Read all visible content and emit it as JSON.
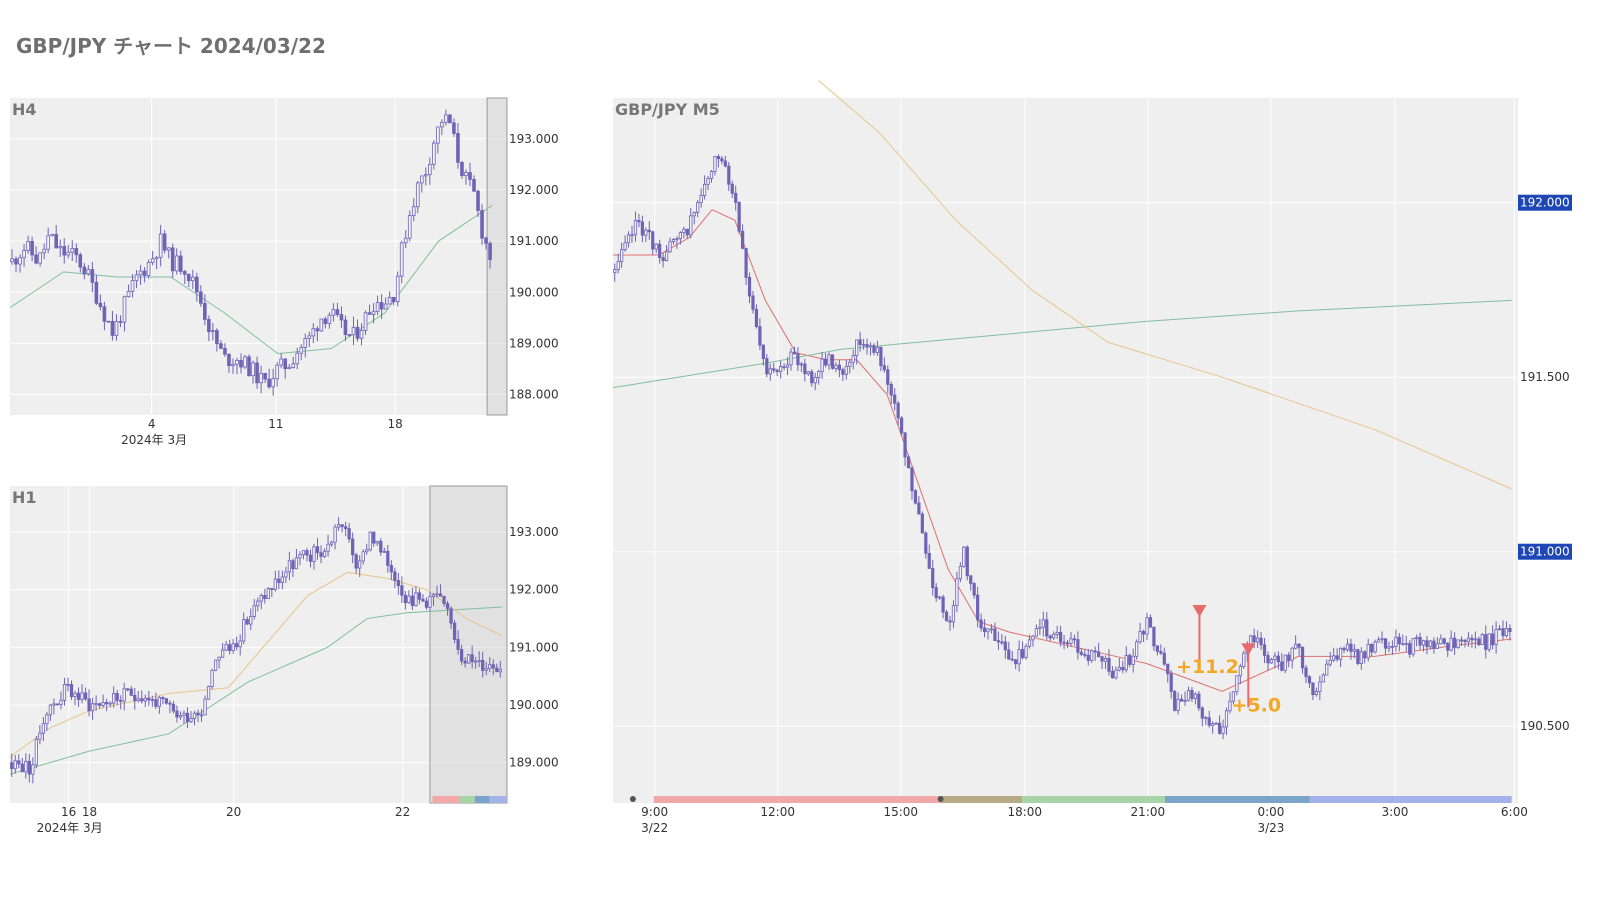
{
  "page": {
    "title": "GBP/JPY チャート 2024/03/22"
  },
  "colors": {
    "plot_bg": "#efefef",
    "candle": "#6f63b5",
    "ma_red": "#e07070",
    "ma_green": "#7fbf9c",
    "ma_orange": "#e8c48a",
    "price_badge": "#1f46b5",
    "annotation": "#f5a623",
    "signal": "#e86a6a"
  },
  "chart_data": [
    {
      "id": "h4",
      "type": "candlestick",
      "title": "H4",
      "ylim": [
        187.6,
        193.8
      ],
      "yticks": [
        188,
        189,
        190,
        191,
        192,
        193
      ],
      "ytick_labels": [
        "188.000",
        "189.000",
        "190.000",
        "191.000",
        "192.000",
        "193.000"
      ],
      "xticks": [
        {
          "pos": 0.285,
          "label": "4"
        },
        {
          "pos": 0.535,
          "label": "11"
        },
        {
          "pos": 0.775,
          "label": "18"
        }
      ],
      "xsublabel": {
        "pos": 0.29,
        "label": "2024年 3月"
      },
      "highlight": [
        0.96,
        1.0
      ],
      "n": 120,
      "anchors": [
        [
          0,
          190.6
        ],
        [
          5,
          190.9
        ],
        [
          10,
          190.6
        ],
        [
          14,
          191.1
        ],
        [
          18,
          190.8
        ],
        [
          24,
          190.7
        ],
        [
          28,
          190.4
        ],
        [
          33,
          189.8
        ],
        [
          38,
          189.2
        ],
        [
          42,
          189.7
        ],
        [
          47,
          190.3
        ],
        [
          52,
          190.6
        ],
        [
          56,
          191.0
        ],
        [
          60,
          190.6
        ],
        [
          65,
          190.5
        ],
        [
          70,
          190.0
        ],
        [
          75,
          189.2
        ],
        [
          80,
          188.7
        ],
        [
          85,
          188.7
        ],
        [
          90,
          188.5
        ],
        [
          95,
          188.2
        ],
        [
          100,
          188.5
        ],
        [
          104,
          188.6
        ],
        [
          108,
          188.9
        ],
        [
          112,
          189.1
        ],
        [
          116,
          189.5
        ],
        [
          120,
          189.6
        ],
        [
          124,
          189.3
        ],
        [
          128,
          189.1
        ],
        [
          132,
          189.4
        ],
        [
          136,
          189.8
        ],
        [
          140,
          189.8
        ],
        [
          144,
          190.0
        ],
        [
          147,
          190.9
        ],
        [
          150,
          191.6
        ],
        [
          153,
          192.1
        ],
        [
          156,
          192.4
        ],
        [
          159,
          193.0
        ],
        [
          162,
          193.4
        ],
        [
          165,
          193.3
        ],
        [
          168,
          192.6
        ],
        [
          171,
          192.2
        ],
        [
          174,
          191.9
        ],
        [
          177,
          191.2
        ],
        [
          180,
          190.7
        ]
      ],
      "anchor_max": 180,
      "ma": [
        {
          "color_key": "ma_green",
          "points": [
            [
              0,
              189.7
            ],
            [
              20,
              190.4
            ],
            [
              40,
              190.3
            ],
            [
              60,
              190.3
            ],
            [
              80,
              189.6
            ],
            [
              100,
              188.8
            ],
            [
              120,
              188.9
            ],
            [
              140,
              189.6
            ],
            [
              160,
              191.0
            ],
            [
              180,
              191.7
            ]
          ]
        }
      ]
    },
    {
      "id": "h1",
      "type": "candlestick",
      "title": "H1",
      "ylim": [
        188.3,
        193.8
      ],
      "yticks": [
        189,
        190,
        191,
        192,
        193
      ],
      "ytick_labels": [
        "189.000",
        "190.000",
        "191.000",
        "192.000",
        "193.000"
      ],
      "xticks": [
        {
          "pos": 0.118,
          "label": "16"
        },
        {
          "pos": 0.16,
          "label": "18"
        },
        {
          "pos": 0.45,
          "label": "20"
        },
        {
          "pos": 0.79,
          "label": "22"
        }
      ],
      "xsublabel": {
        "pos": 0.12,
        "label": "2024年 3月"
      },
      "highlight": [
        0.845,
        1.0
      ],
      "session_bar": true,
      "n": 140,
      "anchors": [
        [
          0,
          189.0
        ],
        [
          5,
          188.9
        ],
        [
          8,
          189.8
        ],
        [
          14,
          190.3
        ],
        [
          20,
          190.0
        ],
        [
          26,
          190.1
        ],
        [
          32,
          190.2
        ],
        [
          38,
          190.0
        ],
        [
          43,
          189.8
        ],
        [
          48,
          189.9
        ],
        [
          52,
          190.9
        ],
        [
          56,
          191.0
        ],
        [
          60,
          191.5
        ],
        [
          64,
          191.9
        ],
        [
          68,
          192.2
        ],
        [
          72,
          192.5
        ],
        [
          76,
          192.6
        ],
        [
          80,
          192.7
        ],
        [
          83,
          193.2
        ],
        [
          86,
          192.8
        ],
        [
          88,
          192.3
        ],
        [
          91,
          193.0
        ],
        [
          94,
          192.6
        ],
        [
          97,
          192.3
        ],
        [
          100,
          191.9
        ],
        [
          104,
          191.8
        ],
        [
          108,
          191.9
        ],
        [
          111,
          191.5
        ],
        [
          114,
          190.9
        ],
        [
          118,
          190.7
        ],
        [
          124,
          190.7
        ]
      ],
      "anchor_max": 124,
      "ma": [
        {
          "color_key": "ma_green",
          "points": [
            [
              0,
              188.8
            ],
            [
              20,
              189.2
            ],
            [
              40,
              189.5
            ],
            [
              60,
              190.4
            ],
            [
              80,
              191.0
            ],
            [
              90,
              191.5
            ],
            [
              100,
              191.6
            ],
            [
              124,
              191.7
            ]
          ]
        },
        {
          "color_key": "ma_orange",
          "points": [
            [
              0,
              189.1
            ],
            [
              10,
              189.6
            ],
            [
              20,
              189.9
            ],
            [
              40,
              190.2
            ],
            [
              55,
              190.3
            ],
            [
              65,
              191.1
            ],
            [
              75,
              191.9
            ],
            [
              85,
              192.3
            ],
            [
              95,
              192.2
            ],
            [
              105,
              192.0
            ],
            [
              115,
              191.5
            ],
            [
              124,
              191.2
            ]
          ]
        }
      ]
    },
    {
      "id": "m5",
      "type": "candlestick",
      "title": "GBP/JPY M5",
      "ylim": [
        190.28,
        192.3
      ],
      "yticks": [
        190.5,
        191.0,
        191.5,
        192.0
      ],
      "ytick_labels": [
        "190.500",
        "191.000",
        "191.500",
        "192.000"
      ],
      "badge_ticks": [
        191.0,
        192.0
      ],
      "xticks": [
        {
          "pos": 0.046,
          "label": "9:00",
          "sub": "3/22"
        },
        {
          "pos": 0.182,
          "label": "12:00"
        },
        {
          "pos": 0.318,
          "label": "15:00"
        },
        {
          "pos": 0.455,
          "label": "18:00"
        },
        {
          "pos": 0.591,
          "label": "21:00"
        },
        {
          "pos": 0.727,
          "label": "0:00",
          "sub": "3/23"
        },
        {
          "pos": 0.864,
          "label": "3:00"
        },
        {
          "pos": 0.996,
          "label": "6:00"
        }
      ],
      "session_bar": true,
      "n": 260,
      "anchors": [
        [
          0,
          191.8
        ],
        [
          6,
          191.95
        ],
        [
          12,
          191.85
        ],
        [
          18,
          191.9
        ],
        [
          24,
          192.05
        ],
        [
          28,
          192.15
        ],
        [
          32,
          192.0
        ],
        [
          36,
          191.7
        ],
        [
          40,
          191.5
        ],
        [
          44,
          191.55
        ],
        [
          48,
          191.55
        ],
        [
          52,
          191.5
        ],
        [
          56,
          191.55
        ],
        [
          60,
          191.52
        ],
        [
          64,
          191.6
        ],
        [
          68,
          191.6
        ],
        [
          72,
          191.5
        ],
        [
          76,
          191.3
        ],
        [
          80,
          191.1
        ],
        [
          84,
          190.9
        ],
        [
          88,
          190.8
        ],
        [
          92,
          191.0
        ],
        [
          96,
          190.8
        ],
        [
          100,
          190.75
        ],
        [
          104,
          190.7
        ],
        [
          108,
          190.7
        ],
        [
          112,
          190.8
        ],
        [
          116,
          190.75
        ],
        [
          120,
          190.75
        ],
        [
          124,
          190.7
        ],
        [
          128,
          190.7
        ],
        [
          132,
          190.65
        ],
        [
          136,
          190.7
        ],
        [
          140,
          190.8
        ],
        [
          144,
          190.7
        ],
        [
          148,
          190.55
        ],
        [
          152,
          190.6
        ],
        [
          156,
          190.5
        ],
        [
          160,
          190.5
        ],
        [
          164,
          190.65
        ],
        [
          168,
          190.75
        ],
        [
          172,
          190.7
        ],
        [
          176,
          190.68
        ],
        [
          180,
          190.72
        ],
        [
          184,
          190.6
        ],
        [
          188,
          190.68
        ],
        [
          192,
          190.73
        ],
        [
          196,
          190.7
        ],
        [
          200,
          190.72
        ],
        [
          204,
          190.75
        ],
        [
          208,
          190.72
        ],
        [
          212,
          190.74
        ],
        [
          216,
          190.72
        ],
        [
          220,
          190.74
        ],
        [
          225,
          190.75
        ],
        [
          230,
          190.74
        ],
        [
          236,
          190.78
        ]
      ],
      "anchor_max": 236,
      "ma": [
        {
          "color_key": "ma_red",
          "points": [
            [
              0,
              191.85
            ],
            [
              12,
              191.85
            ],
            [
              20,
              191.9
            ],
            [
              26,
              191.98
            ],
            [
              32,
              191.95
            ],
            [
              40,
              191.72
            ],
            [
              48,
              191.57
            ],
            [
              56,
              191.55
            ],
            [
              64,
              191.55
            ],
            [
              72,
              191.45
            ],
            [
              80,
              191.2
            ],
            [
              88,
              190.95
            ],
            [
              96,
              190.8
            ],
            [
              104,
              190.77
            ],
            [
              112,
              190.75
            ],
            [
              124,
              190.72
            ],
            [
              140,
              190.68
            ],
            [
              160,
              190.6
            ],
            [
              180,
              190.7
            ],
            [
              200,
              190.7
            ],
            [
              220,
              190.73
            ],
            [
              236,
              190.75
            ]
          ]
        },
        {
          "color_key": "ma_green",
          "points": [
            [
              0,
              191.47
            ],
            [
              40,
              191.54
            ],
            [
              60,
              191.58
            ],
            [
              100,
              191.62
            ],
            [
              140,
              191.66
            ],
            [
              180,
              191.69
            ],
            [
              236,
              191.72
            ]
          ]
        },
        {
          "color_key": "ma_orange",
          "points": [
            [
              54,
              192.35
            ],
            [
              70,
              192.2
            ],
            [
              90,
              191.95
            ],
            [
              110,
              191.75
            ],
            [
              130,
              191.6
            ],
            [
              160,
              191.5
            ],
            [
              200,
              191.35
            ],
            [
              236,
              191.18
            ]
          ]
        }
      ],
      "signals": [
        {
          "x_frac": 0.648,
          "y": 190.83,
          "label": "+11.2"
        },
        {
          "x_frac": 0.702,
          "y": 190.72,
          "label": "+5.0"
        }
      ]
    }
  ]
}
